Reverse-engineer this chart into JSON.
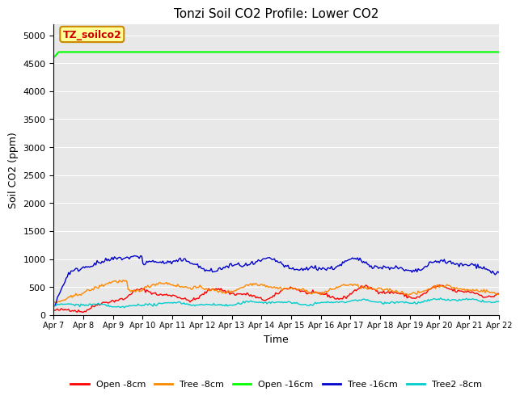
{
  "title": "Tonzi Soil CO2 Profile: Lower CO2",
  "xlabel": "Time",
  "ylabel": "Soil CO2 (ppm)",
  "ylim": [
    0,
    5200
  ],
  "yticks": [
    0,
    500,
    1000,
    1500,
    2000,
    2500,
    3000,
    3500,
    4000,
    4500,
    5000
  ],
  "background_color": "#e8e8e8",
  "annotation_text": "TZ_soilco2",
  "annotation_bg": "#ffff99",
  "annotation_border": "#cc8800",
  "annotation_text_color": "#cc0000",
  "series": {
    "open_8cm": {
      "label": "Open -8cm",
      "color": "#ff0000",
      "linewidth": 1.0
    },
    "tree_8cm": {
      "label": "Tree -8cm",
      "color": "#ff8800",
      "linewidth": 1.0
    },
    "open_16cm": {
      "label": "Open -16cm",
      "color": "#00ff00",
      "linewidth": 1.5
    },
    "tree_16cm": {
      "label": "Tree -16cm",
      "color": "#0000cc",
      "linewidth": 1.0
    },
    "tree2_8cm": {
      "label": "Tree2 -8cm",
      "color": "#00cccc",
      "linewidth": 1.0
    }
  },
  "n_points": 360,
  "x_tick_labels": [
    "Apr 7",
    "Apr 8",
    "Apr 9",
    "Apr 10",
    "Apr 11",
    "Apr 12",
    "Apr 13",
    "Apr 14",
    "Apr 15",
    "Apr 16",
    "Apr 17",
    "Apr 18",
    "Apr 19",
    "Apr 20",
    "Apr 21",
    "Apr 22"
  ],
  "open_16cm_value": 4700
}
